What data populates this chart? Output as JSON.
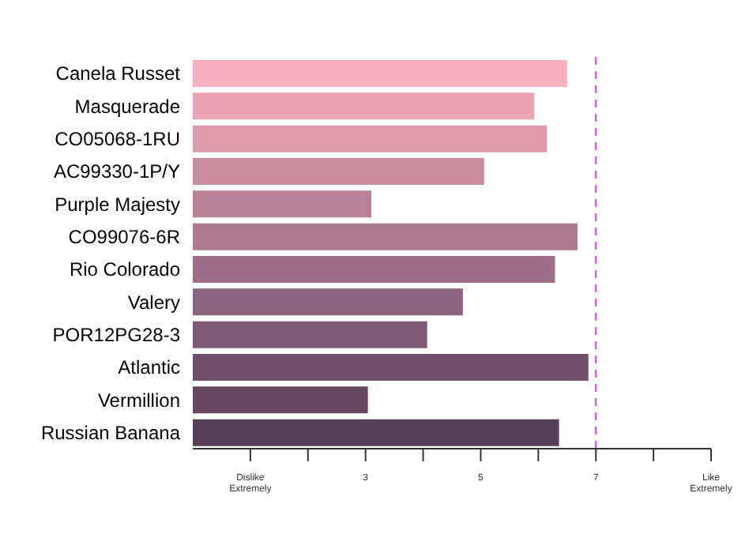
{
  "chart_data": {
    "type": "bar",
    "orientation": "horizontal",
    "categories": [
      "Canela Russet",
      "Masquerade",
      "CO05068-1RU",
      "AC99330-1P/Y",
      "Purple Majesty",
      "CO99076-6R",
      "Rio Colorado",
      "Valery",
      "POR12PG28-3",
      "Atlantic",
      "Vermillion",
      "Russian Banana"
    ],
    "values": [
      6.5,
      5.93,
      6.15,
      5.06,
      3.1,
      6.68,
      6.29,
      4.69,
      4.07,
      6.87,
      3.04,
      6.36
    ],
    "colors": [
      "#f9b0c0",
      "#eba4b4",
      "#dd9aab",
      "#ca8ea0",
      "#b98196",
      "#ac7a8e",
      "#9c6f87",
      "#8d6480",
      "#7f5a77",
      "#715069",
      "#644862",
      "#58405a"
    ],
    "xlim": [
      0,
      9
    ],
    "xticks": [
      {
        "value": 1,
        "label": "Dislike Extremely"
      },
      {
        "value": 2,
        "label": null
      },
      3,
      {
        "value": 4,
        "label": null
      },
      5,
      {
        "value": 6,
        "label": null
      },
      7,
      {
        "value": 8,
        "label": null
      },
      {
        "value": 9,
        "label": "Like Extremely"
      }
    ],
    "ref_lines": [
      {
        "axis": "x",
        "value": 7,
        "color": "#e040e0",
        "line_style": "dashed"
      }
    ],
    "grid": false,
    "legend": false
  }
}
